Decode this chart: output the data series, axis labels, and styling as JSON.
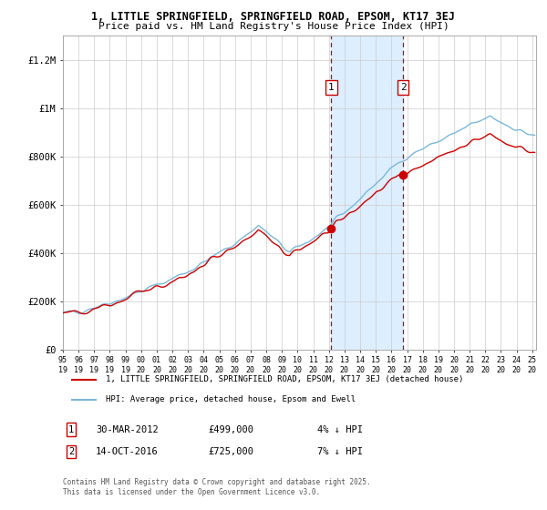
{
  "title_line1": "1, LITTLE SPRINGFIELD, SPRINGFIELD ROAD, EPSOM, KT17 3EJ",
  "title_line2": "Price paid vs. HM Land Registry's House Price Index (HPI)",
  "ylim": [
    0,
    1300000
  ],
  "yticks": [
    0,
    200000,
    400000,
    600000,
    800000,
    1000000,
    1200000
  ],
  "ytick_labels": [
    "£0",
    "£200K",
    "£400K",
    "£600K",
    "£800K",
    "£1M",
    "£1.2M"
  ],
  "sale1_date": "2012-03-01",
  "sale1_price": 499000,
  "sale2_date": "2016-10-01",
  "sale2_price": 725000,
  "legend_line1": "1, LITTLE SPRINGFIELD, SPRINGFIELD ROAD, EPSOM, KT17 3EJ (detached house)",
  "legend_line2": "HPI: Average price, detached house, Epsom and Ewell",
  "footer": "Contains HM Land Registry data © Crown copyright and database right 2025.\nThis data is licensed under the Open Government Licence v3.0.",
  "hpi_color": "#7ab8d9",
  "property_color": "#cc0000",
  "vline_color": "#cc0000",
  "shade_color": "#ddeeff",
  "background_color": "#ffffff",
  "grid_color": "#cccccc",
  "xstart": "1995-01-01",
  "xend": "2025-04-01"
}
